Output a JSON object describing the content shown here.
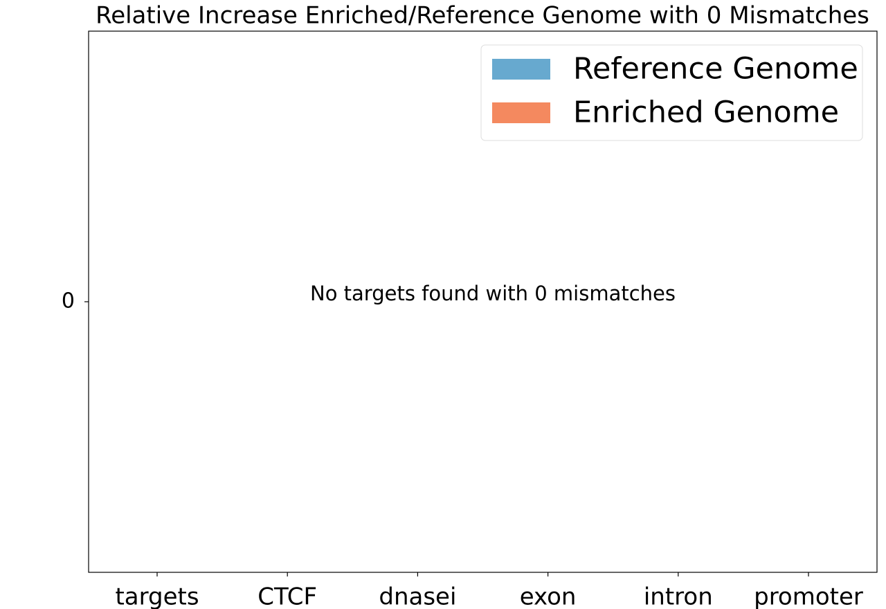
{
  "chart_data": {
    "type": "bar",
    "title": "Relative Increase Enriched/Reference Genome with 0 Mismatches",
    "categories": [
      "targets",
      "CTCF",
      "dnasei",
      "exon",
      "intron",
      "promoter"
    ],
    "series": [
      {
        "name": "Reference Genome",
        "color": "#67a9cf",
        "values": [
          0,
          0,
          0,
          0,
          0,
          0
        ]
      },
      {
        "name": "Enriched Genome",
        "color": "#f4895f",
        "values": [
          0,
          0,
          0,
          0,
          0,
          0
        ]
      }
    ],
    "ylim": [
      -0.055,
      0.055
    ],
    "yticks": [
      0
    ],
    "annotation": "No targets found with 0 mismatches",
    "legend": "upper right"
  }
}
